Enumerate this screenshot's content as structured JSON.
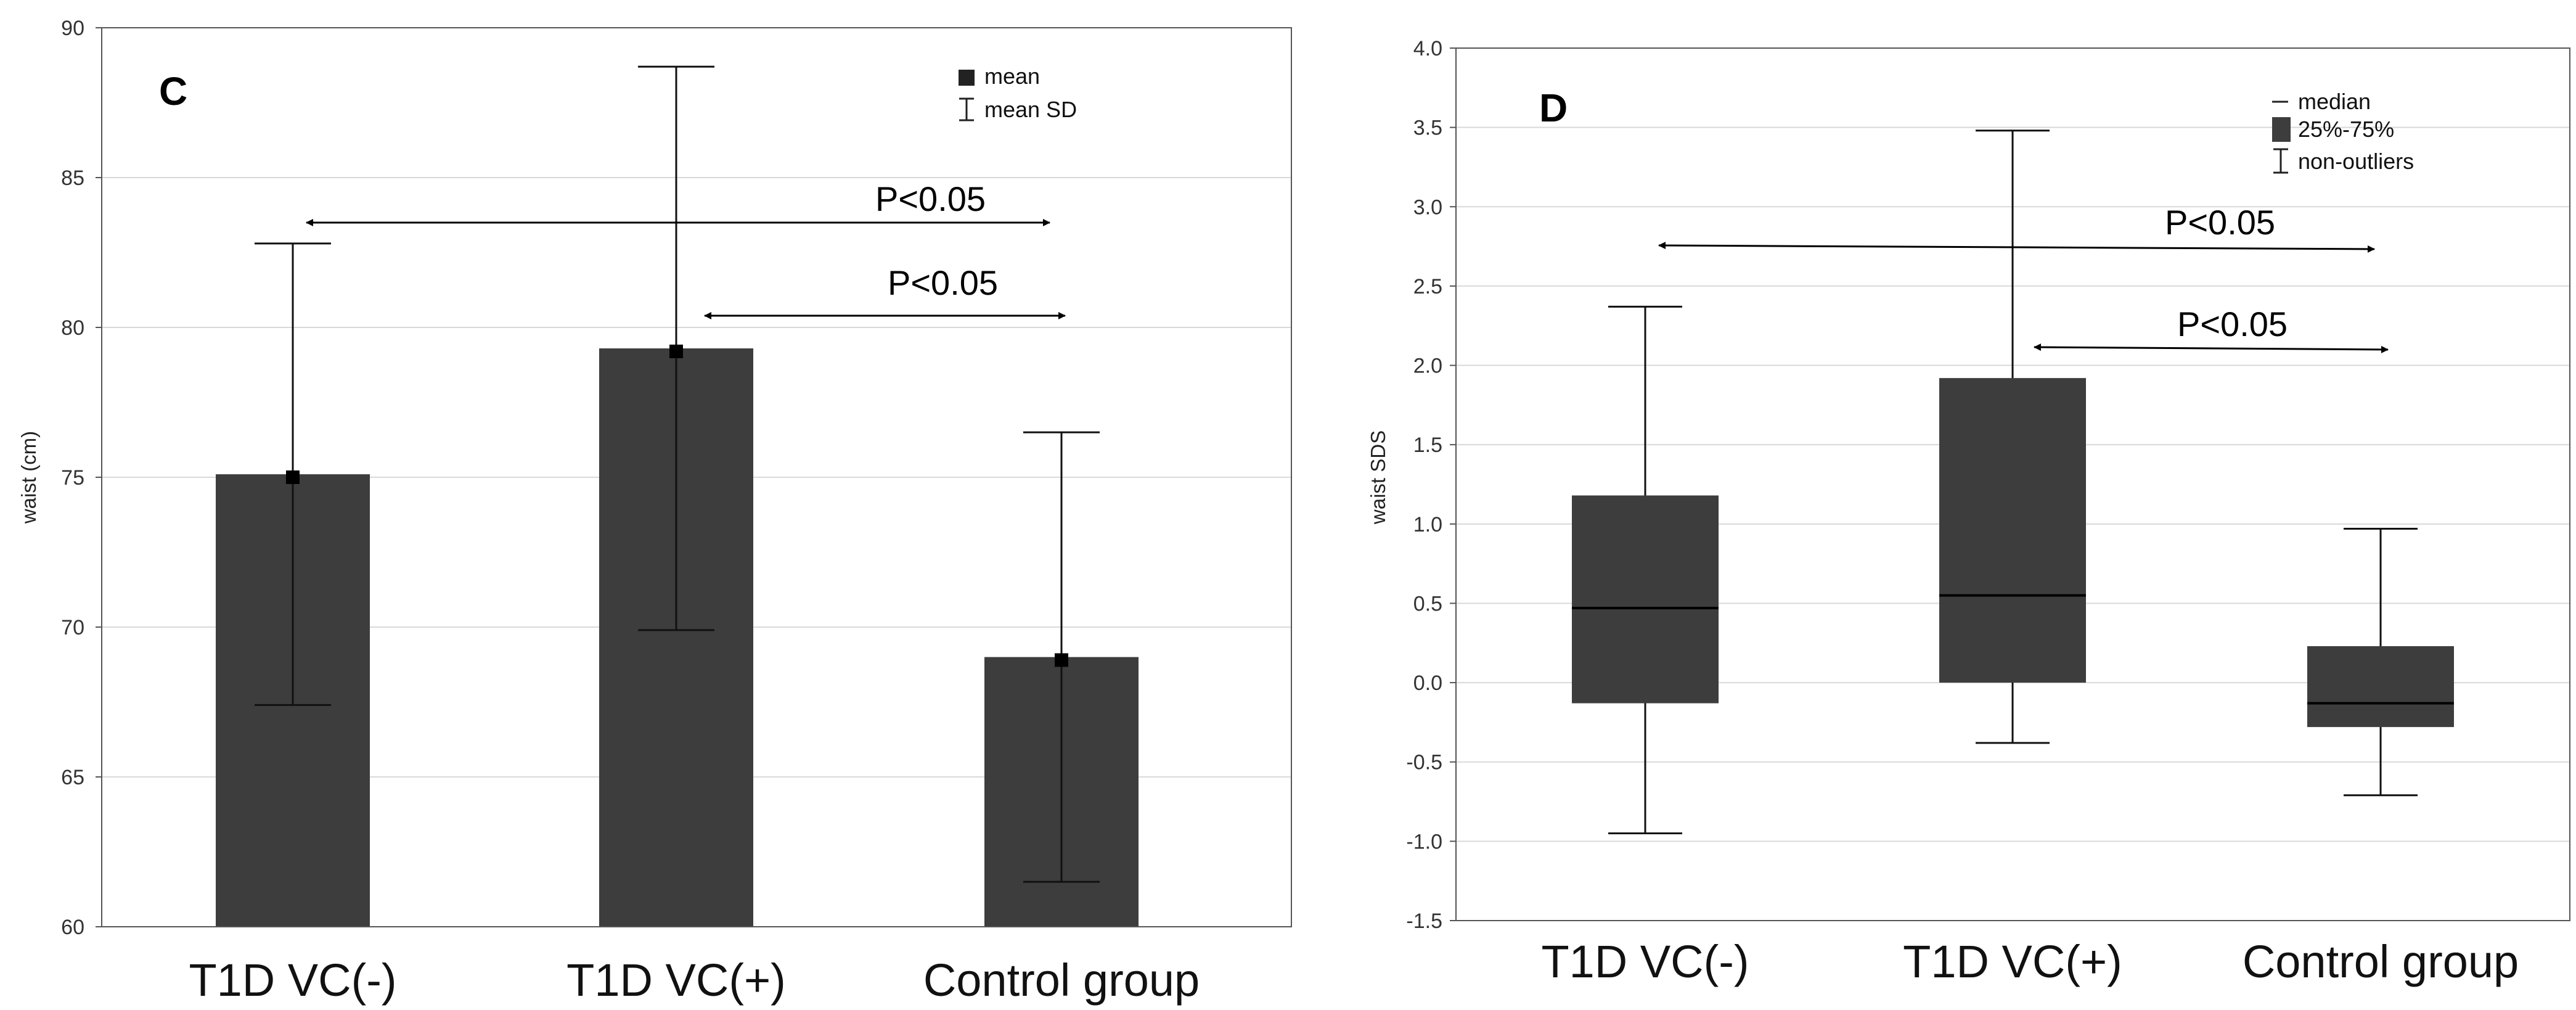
{
  "chart_data": [
    {
      "panel": "C",
      "type": "bar",
      "ylabel": "waist (cm)",
      "ylim": [
        60,
        90
      ],
      "yticks": [
        "60",
        "65",
        "70",
        "75",
        "80",
        "85",
        "90"
      ],
      "categories": [
        "T1D VC(-)",
        "T1D VC(+)",
        "Control group"
      ],
      "values": [
        75.1,
        79.3,
        69.0
      ],
      "mean_points": [
        75.0,
        79.2,
        68.9
      ],
      "sd_upper": [
        82.8,
        88.7,
        76.5
      ],
      "sd_lower": [
        67.4,
        69.9,
        61.5
      ],
      "legend": [
        "mean",
        "mean SD"
      ],
      "annotations": [
        {
          "text": "P<0.05",
          "from": "T1D VC(-)",
          "to": "Control group"
        },
        {
          "text": "P<0.05",
          "from": "T1D VC(+)",
          "to": "Control group"
        }
      ],
      "grid": true
    },
    {
      "panel": "D",
      "type": "box",
      "ylabel": "waist SDS",
      "ylim": [
        -1.5,
        4.0
      ],
      "yticks": [
        "-1.5",
        "-1.0",
        "-0.5",
        "0.0",
        "0.5",
        "1.0",
        "1.5",
        "2.0",
        "2.5",
        "3.0",
        "3.5",
        "4.0"
      ],
      "categories": [
        "T1D VC(-)",
        "T1D VC(+)",
        "Control group"
      ],
      "median": [
        0.47,
        0.55,
        -0.13
      ],
      "q1": [
        -0.13,
        0.0,
        -0.28
      ],
      "q3": [
        1.18,
        1.92,
        0.23
      ],
      "whisker_low": [
        -0.95,
        -0.38,
        -0.71
      ],
      "whisker_high": [
        2.37,
        3.48,
        0.97
      ],
      "legend": [
        "median",
        "25%-75%",
        "non-outliers"
      ],
      "annotations": [
        {
          "text": "P<0.05",
          "from": "T1D VC(-)",
          "to": "Control group"
        },
        {
          "text": "P<0.05",
          "from": "T1D VC(+)",
          "to": "Control group"
        }
      ],
      "grid": true
    }
  ],
  "colors": {
    "bar": "#3d3d3d",
    "grid": "#d9d9d9",
    "axis": "#555555"
  }
}
